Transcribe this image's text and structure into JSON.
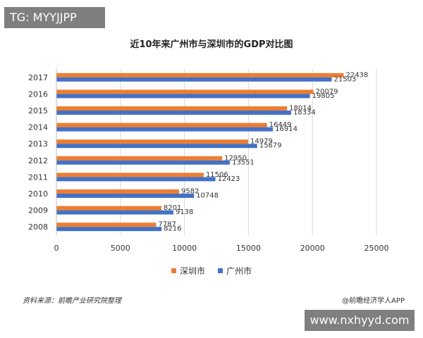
{
  "badges": {
    "tag": "TG: MYYJJPP",
    "site": "www.nxhyyd.com"
  },
  "footer": {
    "source": "资料来源：前瞻产业研究院整理",
    "credit": "@前瞻经济学人APP"
  },
  "colors": {
    "shenzhen": "#ED7D31",
    "guangzhou": "#4472C4",
    "badge": "#7F7F7F",
    "grid": "#D9D9D9"
  },
  "chart_data": {
    "type": "bar",
    "orientation": "horizontal",
    "title": "近10年来广州市与深圳市的GDP对比图",
    "categories": [
      "2017",
      "2016",
      "2015",
      "2014",
      "2013",
      "2012",
      "2011",
      "2010",
      "2009",
      "2008"
    ],
    "series": [
      {
        "name": "深圳市",
        "color": "#ED7D31",
        "values": [
          22438,
          20079,
          18014,
          16449,
          14979,
          12950,
          11506,
          9582,
          8201,
          7787
        ]
      },
      {
        "name": "广州市",
        "color": "#4472C4",
        "values": [
          21503,
          19805,
          18334,
          16914,
          15679,
          13551,
          12423,
          10748,
          9138,
          8216
        ]
      }
    ],
    "x_ticks": [
      "0",
      "5000",
      "10000",
      "15000",
      "20000",
      "25000"
    ],
    "xlim": [
      0,
      25000
    ],
    "xlabel": "",
    "ylabel": "",
    "grid": true,
    "data_labels": true,
    "legend_position": "bottom"
  }
}
